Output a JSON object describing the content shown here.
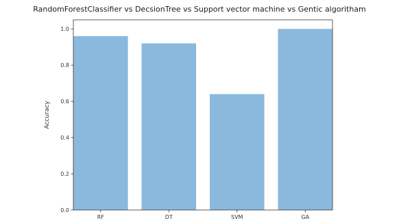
{
  "chart_data": {
    "type": "bar",
    "title": "RandomForestClassifier vs DecsionTree vs Support vector machine vs Gentic algoritham",
    "xlabel": "",
    "ylabel": "Accuracy",
    "categories": [
      "RF",
      "DT",
      "SVM",
      "GA"
    ],
    "values": [
      0.96,
      0.92,
      0.64,
      1.0
    ],
    "ylim": [
      0.0,
      1.05
    ],
    "yticks": [
      0.0,
      0.2,
      0.4,
      0.6,
      0.8,
      1.0
    ],
    "ytick_labels": [
      "0.0",
      "0.2",
      "0.4",
      "0.6",
      "0.8",
      "1.0"
    ],
    "grid": false,
    "bar_color": "#8bb9dd"
  }
}
